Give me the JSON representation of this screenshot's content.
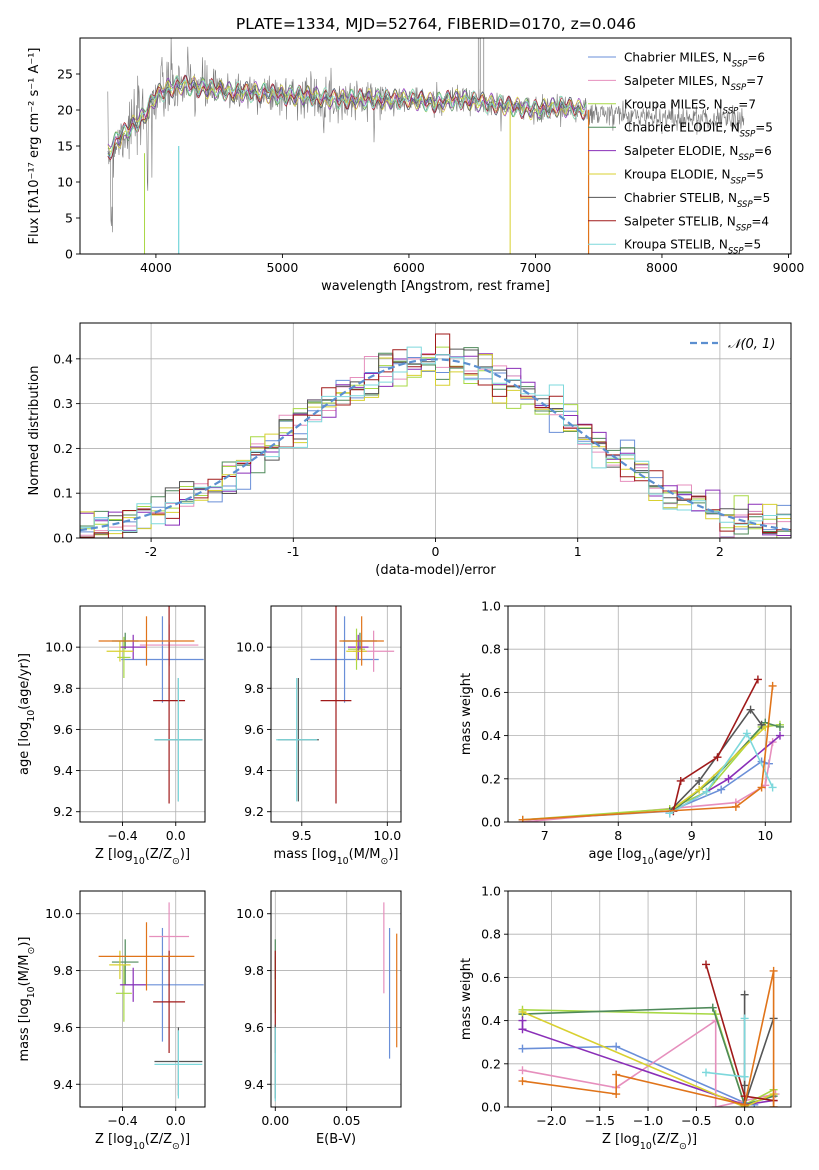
{
  "figure": {
    "title": "PLATE=1334, MJD=52764, FIBERID=0170, z=0.046"
  },
  "colors": {
    "Chabrier MILES": "#6a8fd8",
    "Salpeter MILES": "#e68fbd",
    "Kroupa MILES": "#a8d845",
    "Chabrier ELODIE": "#4f8a5a",
    "Salpeter ELODIE": "#8a2fb8",
    "Kroupa ELODIE": "#d8d030",
    "Chabrier STELIB": "#555555",
    "Salpeter STELIB": "#a01a1a",
    "Kroupa STELIB": "#7dd8dc",
    "data": "#7a7a7a",
    "orange": "#e0741a",
    "grey_light": "#b0b0b0"
  },
  "chart_data": [
    {
      "id": "spectrum",
      "type": "line",
      "xlabel": "wavelength [Angstrom, rest frame]",
      "ylabel": "Flux [fλ10⁻¹⁷ erg cm⁻² s⁻¹ A⁻¹]",
      "xlim": [
        3400,
        9020
      ],
      "ylim": [
        0,
        30
      ],
      "xticks": [
        4000,
        5000,
        6000,
        7000,
        8000,
        9000
      ],
      "yticks": [
        0,
        5,
        10,
        15,
        20,
        25
      ],
      "grid": false,
      "legend_position": "right",
      "legend": [
        {
          "name": "Chabrier MILES",
          "main": "Chabrier MILES, N",
          "sub": "SSP",
          "tail": "=6"
        },
        {
          "name": "Salpeter MILES",
          "main": "Salpeter MILES, N",
          "sub": "SSP",
          "tail": "=7"
        },
        {
          "name": "Kroupa MILES",
          "main": "Kroupa MILES, N",
          "sub": "SSP",
          "tail": "=7"
        },
        {
          "name": "Chabrier ELODIE",
          "main": "Chabrier ELODIE, N",
          "sub": "SSP",
          "tail": "=5"
        },
        {
          "name": "Salpeter ELODIE",
          "main": "Salpeter ELODIE, N",
          "sub": "SSP",
          "tail": "=6"
        },
        {
          "name": "Kroupa ELODIE",
          "main": "Kroupa ELODIE, N",
          "sub": "SSP",
          "tail": "=5"
        },
        {
          "name": "Chabrier STELIB",
          "main": "Chabrier STELIB, N",
          "sub": "SSP",
          "tail": "=5"
        },
        {
          "name": "Salpeter STELIB",
          "main": "Salpeter STELIB, N",
          "sub": "SSP",
          "tail": "=4"
        },
        {
          "name": "Kroupa STELIB",
          "main": "Kroupa STELIB, N",
          "sub": "SSP",
          "tail": "=5"
        }
      ],
      "continuum": {
        "x": [
          3620,
          3700,
          3800,
          3900,
          4000,
          4100,
          4200,
          4400,
          4600,
          4800,
          5000,
          5200,
          5400,
          5600,
          5800,
          6000,
          6200,
          6400,
          6600,
          6800,
          7000,
          7200,
          7400
        ],
        "y": [
          14,
          16,
          17.5,
          19,
          22,
          23,
          23.5,
          23,
          22.5,
          22.5,
          22,
          22,
          21.5,
          21.5,
          21.5,
          21.5,
          21,
          21.5,
          21,
          20.5,
          20,
          20.5,
          20
        ]
      },
      "data_extends_to": 8650
    },
    {
      "id": "residual-histogram",
      "type": "area",
      "xlabel": "(data-model)/error",
      "ylabel": "Normed distribution",
      "xlim": [
        -2.5,
        2.5
      ],
      "ylim": [
        0,
        0.48
      ],
      "xticks": [
        -2,
        -1,
        0,
        1,
        2
      ],
      "yticks": [
        0.0,
        0.1,
        0.2,
        0.3,
        0.4
      ],
      "grid": true,
      "legend_position": "top-right",
      "reference": {
        "name": "𝒩(0, 1)",
        "mean": 0,
        "sigma": 1
      }
    },
    {
      "id": "age-vs-Z",
      "type": "scatter",
      "xlabel": "Z [log10(Z/Z⊙)]",
      "ylabel": "age  [log10(age/yr)]",
      "xlim": [
        -0.72,
        0.22
      ],
      "ylim": [
        9.15,
        10.2
      ],
      "xticks": [
        -0.4,
        0.0
      ],
      "yticks": [
        9.2,
        9.4,
        9.6,
        9.8,
        10.0
      ],
      "grid": true,
      "points": [
        {
          "series": "Chabrier MILES",
          "x": -0.1,
          "xerr": 0.31,
          "y": 9.94,
          "yerr": 0.21
        },
        {
          "series": "Salpeter MILES",
          "x": -0.05,
          "xerr": 0.22,
          "y": 10.01,
          "yerr": 0.1
        },
        {
          "series": "Kroupa MILES",
          "x": -0.39,
          "xerr": 0.05,
          "y": 9.95,
          "yerr": 0.1
        },
        {
          "series": "Chabrier ELODIE",
          "x": -0.38,
          "xerr": 0.1,
          "y": 10.03,
          "yerr": 0.04
        },
        {
          "series": "Salpeter ELODIE",
          "x": -0.32,
          "xerr": 0.1,
          "y": 10.0,
          "yerr": 0.06
        },
        {
          "series": "Kroupa ELODIE",
          "x": -0.42,
          "xerr": 0.1,
          "y": 9.98,
          "yerr": 0.05
        },
        {
          "series": "Chabrier STELIB",
          "x": 0.02,
          "xerr": 0.18,
          "y": 9.55,
          "yerr": 0.3
        },
        {
          "series": "Salpeter STELIB",
          "x": -0.05,
          "xerr": 0.12,
          "y": 9.74,
          "yerr": 0.5
        },
        {
          "series": "Kroupa STELIB",
          "x": 0.02,
          "xerr": 0.18,
          "y": 9.55,
          "yerr": 0.3
        },
        {
          "series": "orange",
          "x": -0.22,
          "xerr": 0.36,
          "y": 10.03,
          "yerr": 0.12
        }
      ]
    },
    {
      "id": "age-vs-mass",
      "type": "scatter",
      "xlabel": "mass [log10(M/M⊙)]",
      "ylabel": "",
      "xlim": [
        9.32,
        10.08
      ],
      "ylim": [
        9.15,
        10.2
      ],
      "xticks": [
        9.5,
        10.0
      ],
      "yticks": [
        9.2,
        9.4,
        9.6,
        9.8,
        10.0
      ],
      "grid": true,
      "points": [
        {
          "series": "Chabrier MILES",
          "x": 9.75,
          "xerr": 0.2,
          "y": 9.94,
          "yerr": 0.21
        },
        {
          "series": "Salpeter MILES",
          "x": 9.92,
          "xerr": 0.12,
          "y": 9.98,
          "yerr": 0.1
        },
        {
          "series": "Kroupa MILES",
          "x": 9.82,
          "xerr": 0.05,
          "y": 9.99,
          "yerr": 0.1
        },
        {
          "series": "Chabrier ELODIE",
          "x": 9.84,
          "xerr": 0.1,
          "y": 10.03,
          "yerr": 0.04
        },
        {
          "series": "Salpeter ELODIE",
          "x": 9.83,
          "xerr": 0.06,
          "y": 10.0,
          "yerr": 0.06
        },
        {
          "series": "Kroupa ELODIE",
          "x": 9.82,
          "xerr": 0.06,
          "y": 9.98,
          "yerr": 0.05
        },
        {
          "series": "Chabrier STELIB",
          "x": 9.48,
          "xerr": 0.12,
          "y": 9.55,
          "yerr": 0.3
        },
        {
          "series": "Salpeter STELIB",
          "x": 9.7,
          "xerr": 0.09,
          "y": 9.74,
          "yerr": 0.5
        },
        {
          "series": "Kroupa STELIB",
          "x": 9.47,
          "xerr": 0.12,
          "y": 9.55,
          "yerr": 0.3
        },
        {
          "series": "orange",
          "x": 9.85,
          "xerr": 0.13,
          "y": 10.03,
          "yerr": 0.12
        }
      ]
    },
    {
      "id": "mass-weight-vs-age",
      "type": "line",
      "xlabel": "age  [log10(age/yr)]",
      "ylabel": "mass weight",
      "xlim": [
        6.5,
        10.35
      ],
      "ylim": [
        0,
        1.0
      ],
      "xticks": [
        7,
        8,
        9,
        10
      ],
      "yticks": [
        0.0,
        0.2,
        0.4,
        0.6,
        0.8,
        1.0
      ],
      "grid": true,
      "series": [
        {
          "name": "Chabrier MILES",
          "x": [
            6.7,
            8.7,
            9.4,
            9.95,
            10.05
          ],
          "y": [
            0.01,
            0.05,
            0.15,
            0.28,
            0.27
          ]
        },
        {
          "name": "Salpeter MILES",
          "x": [
            6.7,
            9.6,
            10.0,
            10.1
          ],
          "y": [
            0.0,
            0.09,
            0.17,
            0.37
          ]
        },
        {
          "name": "Kroupa MILES",
          "x": [
            6.7,
            8.7,
            9.2,
            9.95,
            10.2
          ],
          "y": [
            0.01,
            0.06,
            0.14,
            0.44,
            0.45
          ]
        },
        {
          "name": "Chabrier ELODIE",
          "x": [
            8.7,
            9.3,
            10.0,
            10.2
          ],
          "y": [
            0.04,
            0.2,
            0.46,
            0.44
          ]
        },
        {
          "name": "Salpeter ELODIE",
          "x": [
            8.7,
            9.5,
            10.2
          ],
          "y": [
            0.04,
            0.2,
            0.4
          ]
        },
        {
          "name": "Kroupa ELODIE",
          "x": [
            8.7,
            9.1,
            10.0
          ],
          "y": [
            0.05,
            0.15,
            0.44
          ]
        },
        {
          "name": "Chabrier STELIB",
          "x": [
            8.7,
            9.1,
            9.8,
            9.95
          ],
          "y": [
            0.05,
            0.19,
            0.52,
            0.45
          ]
        },
        {
          "name": "Salpeter STELIB",
          "x": [
            8.75,
            8.85,
            9.35,
            9.9
          ],
          "y": [
            0.05,
            0.19,
            0.3,
            0.66
          ]
        },
        {
          "name": "Kroupa STELIB",
          "x": [
            8.7,
            9.2,
            9.75,
            10.1
          ],
          "y": [
            0.04,
            0.14,
            0.41,
            0.16
          ]
        },
        {
          "name": "orange",
          "x": [
            6.7,
            9.6,
            9.95,
            10.1
          ],
          "y": [
            0.01,
            0.07,
            0.16,
            0.63
          ]
        }
      ]
    },
    {
      "id": "mass-vs-Z",
      "type": "scatter",
      "xlabel": "Z [log10(Z/Z⊙)]",
      "ylabel": "mass [log10(M/M⊙)]",
      "xlim": [
        -0.72,
        0.22
      ],
      "ylim": [
        9.32,
        10.08
      ],
      "xticks": [
        -0.4,
        0.0
      ],
      "yticks": [
        9.4,
        9.6,
        9.8,
        10.0
      ],
      "grid": true,
      "points": [
        {
          "series": "Chabrier MILES",
          "x": -0.1,
          "xerr": 0.31,
          "y": 9.75,
          "yerr": 0.2
        },
        {
          "series": "Salpeter MILES",
          "x": -0.05,
          "xerr": 0.15,
          "y": 9.92,
          "yerr": 0.12
        },
        {
          "series": "Kroupa MILES",
          "x": -0.39,
          "xerr": 0.06,
          "y": 9.72,
          "yerr": 0.1
        },
        {
          "series": "Chabrier ELODIE",
          "x": -0.38,
          "xerr": 0.1,
          "y": 9.83,
          "yerr": 0.08
        },
        {
          "series": "Salpeter ELODIE",
          "x": -0.32,
          "xerr": 0.1,
          "y": 9.75,
          "yerr": 0.06
        },
        {
          "series": "Kroupa ELODIE",
          "x": -0.42,
          "xerr": 0.08,
          "y": 9.82,
          "yerr": 0.05
        },
        {
          "series": "Chabrier STELIB",
          "x": 0.02,
          "xerr": 0.18,
          "y": 9.48,
          "yerr": 0.12
        },
        {
          "series": "Salpeter STELIB",
          "x": -0.05,
          "xerr": 0.12,
          "y": 9.69,
          "yerr": 0.18
        },
        {
          "series": "Kroupa STELIB",
          "x": 0.02,
          "xerr": 0.18,
          "y": 9.47,
          "yerr": 0.12
        },
        {
          "series": "orange",
          "x": -0.22,
          "xerr": 0.36,
          "y": 9.85,
          "yerr": 0.12
        }
      ]
    },
    {
      "id": "mass-vs-EBV",
      "type": "scatter",
      "xlabel": "E(B-V)",
      "ylabel": "",
      "xlim": [
        -0.003,
        0.088
      ],
      "ylim": [
        9.32,
        10.08
      ],
      "xticks": [
        0.0,
        0.05
      ],
      "yticks": [
        9.4,
        9.6,
        9.8,
        10.0
      ],
      "grid": true,
      "points": [
        {
          "series": "Chabrier MILES",
          "x": 0.08,
          "xerr": 0,
          "y": 9.72,
          "yerr": 0.23
        },
        {
          "series": "Salpeter MILES",
          "x": 0.076,
          "xerr": 0,
          "y": 9.88,
          "yerr": 0.16
        },
        {
          "series": "orange",
          "x": 0.085,
          "xerr": 0,
          "y": 9.73,
          "yerr": 0.2
        },
        {
          "series": "Kroupa MILES",
          "x": 0.0,
          "xerr": 0,
          "y": 9.75,
          "yerr": 0.1
        },
        {
          "series": "Chabrier ELODIE",
          "x": 0.0,
          "xerr": 0,
          "y": 9.84,
          "yerr": 0.07
        },
        {
          "series": "Salpeter STELIB",
          "x": 0.0,
          "xerr": 0,
          "y": 9.69,
          "yerr": 0.18
        },
        {
          "series": "Chabrier STELIB",
          "x": 0.0,
          "xerr": 0,
          "y": 9.48,
          "yerr": 0.13
        },
        {
          "series": "Kroupa STELIB",
          "x": 0.0,
          "xerr": 0,
          "y": 9.47,
          "yerr": 0.13
        }
      ]
    },
    {
      "id": "mass-weight-vs-Z",
      "type": "line",
      "xlabel": "Z [log10(Z/Z⊙)]",
      "ylabel": "mass weight",
      "xlim": [
        -2.45,
        0.48
      ],
      "ylim": [
        0,
        1.0
      ],
      "xticks": [
        -2.0,
        -1.5,
        -1.0,
        -0.5,
        0.0
      ],
      "yticks": [
        0.0,
        0.2,
        0.4,
        0.6,
        0.8,
        1.0
      ],
      "grid": true,
      "series": [
        {
          "name": "Chabrier MILES",
          "x": [
            -2.3,
            -1.33,
            0.0,
            0.1
          ],
          "y": [
            0.27,
            0.28,
            0.02,
            0.01
          ]
        },
        {
          "name": "Salpeter MILES",
          "x": [
            -2.3,
            -1.33,
            -0.3,
            -0.3,
            0.32
          ],
          "y": [
            0.17,
            0.09,
            0.4,
            0.0,
            0.06
          ]
        },
        {
          "name": "Kroupa MILES",
          "x": [
            -2.3,
            -0.3,
            0.0,
            0.3
          ],
          "y": [
            0.45,
            0.43,
            0.01,
            0.08
          ]
        },
        {
          "name": "Chabrier ELODIE",
          "x": [
            -2.3,
            -0.33,
            0.0,
            0.3
          ],
          "y": [
            0.43,
            0.46,
            0.01,
            0.05
          ]
        },
        {
          "name": "Salpeter ELODIE",
          "x": [
            -2.3,
            -2.3,
            0.0,
            0.3
          ],
          "y": [
            0.4,
            0.36,
            0.01,
            0.03
          ]
        },
        {
          "name": "Kroupa ELODIE",
          "x": [
            -2.3,
            0.0,
            0.3
          ],
          "y": [
            0.44,
            0.0,
            0.06
          ]
        },
        {
          "name": "Chabrier STELIB",
          "x": [
            0.0,
            0.0,
            0.0,
            0.3
          ],
          "y": [
            0.52,
            0.1,
            0.01,
            0.41
          ]
        },
        {
          "name": "Salpeter STELIB",
          "x": [
            -0.4,
            0.0,
            0.3
          ],
          "y": [
            0.66,
            0.05,
            0.03
          ]
        },
        {
          "name": "Kroupa STELIB",
          "x": [
            -0.4,
            0.0,
            0.0
          ],
          "y": [
            0.16,
            0.14,
            0.41
          ]
        },
        {
          "name": "orange",
          "x": [
            -2.3,
            -1.33,
            -1.33,
            0.0,
            0.3,
            0.3
          ],
          "y": [
            0.12,
            0.06,
            0.15,
            0.01,
            0.63,
            0.0
          ]
        }
      ]
    }
  ]
}
